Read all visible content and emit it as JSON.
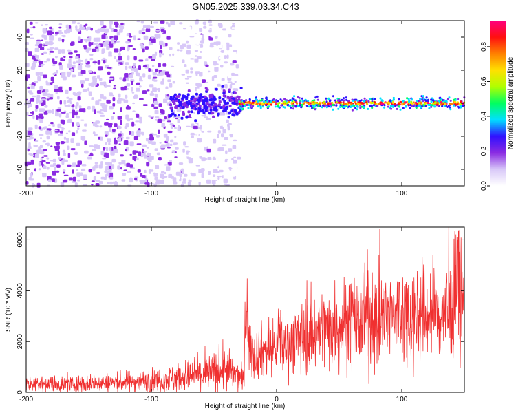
{
  "title": "GN05.2025.339.03.34.C43",
  "chart_data": [
    {
      "type": "heatmap",
      "name": "spectrogram",
      "xlabel": "Height of straight line (km)",
      "ylabel": "Frequency (Hz)",
      "xlim": [
        -200,
        150
      ],
      "ylim": [
        -50,
        50
      ],
      "xticks": [
        -200,
        -100,
        0,
        100
      ],
      "yticks": [
        -40,
        -20,
        0,
        20,
        40
      ],
      "colorbar": {
        "label": "Normalized spectral amplitude",
        "range": [
          0,
          0.95
        ],
        "ticks": [
          0,
          0.2,
          0.4,
          0.6,
          0.8
        ],
        "tick_labels": [
          "0.0",
          "0.2",
          "0.4",
          "0.6",
          "0.8"
        ],
        "colors": [
          "#ffffff",
          "#d8c8f8",
          "#8a2be2",
          "#3010ff",
          "#00e0ff",
          "#00ff60",
          "#b0ff00",
          "#ffe000",
          "#ff8000",
          "#ff1010",
          "#ff0080"
        ]
      },
      "description_points": [
        {
          "x_range": [
            -200,
            -80
          ],
          "freq_range": [
            -50,
            50
          ],
          "amplitude": 0.1
        },
        {
          "x_range": [
            -80,
            -30
          ],
          "freq_range": [
            -8,
            8
          ],
          "amplitude": 0.25
        },
        {
          "x_range": [
            -30,
            150
          ],
          "freq_range": [
            -2,
            2
          ],
          "amplitude": 0.85
        }
      ]
    },
    {
      "type": "line",
      "name": "snr",
      "xlabel": "Height of straight line (km)",
      "ylabel": "SNR (10 * v/v)",
      "xlim": [
        -200,
        150
      ],
      "ylim": [
        0,
        6500
      ],
      "xticks": [
        -200,
        -100,
        0,
        100
      ],
      "yticks": [
        0,
        2000,
        4000,
        6000
      ],
      "color": "#f03030",
      "series": [
        {
          "name": "SNR",
          "x": [
            -200,
            -150,
            -100,
            -60,
            -40,
            -25,
            -24,
            -20,
            0,
            50,
            100,
            150
          ],
          "y": [
            300,
            350,
            450,
            700,
            900,
            400,
            3800,
            1500,
            1800,
            2700,
            3000,
            3200
          ]
        }
      ],
      "peak_annotations": [
        {
          "x": -24,
          "y": 3800
        },
        {
          "x": 145,
          "y": 6400
        }
      ]
    }
  ]
}
